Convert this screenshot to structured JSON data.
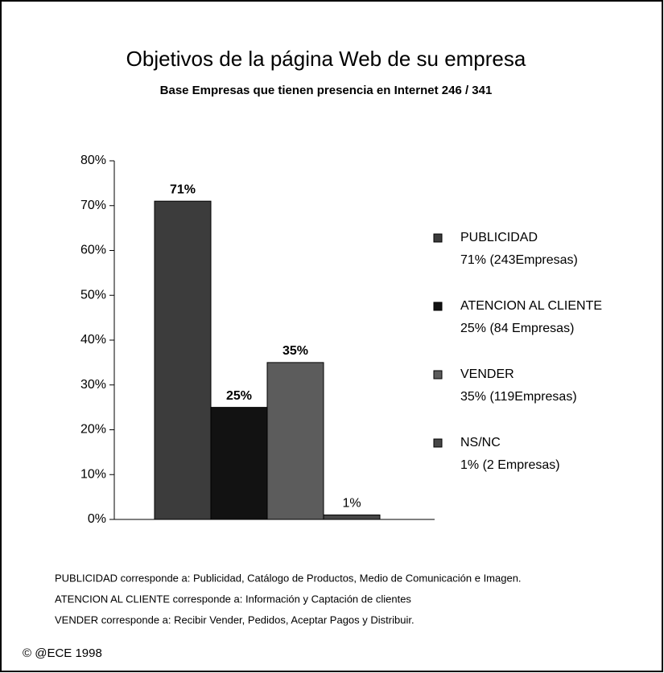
{
  "chart_data": {
    "type": "bar",
    "title": "Objetivos de la página Web de su empresa",
    "subtitle": "Base Empresas que tienen presencia en Internet  246 / 341",
    "series": [
      {
        "name": "PUBLICIDAD",
        "detail": "71% (243Empresas)",
        "color": "#3c3c3c",
        "values": [
          71
        ],
        "value_labels": [
          "71%"
        ]
      },
      {
        "name": "ATENCION AL CLIENTE",
        "detail": "25% (84 Empresas)",
        "color": "#121212",
        "values": [
          25
        ],
        "value_labels": [
          "25%"
        ]
      },
      {
        "name": "VENDER",
        "detail": "35% (119Empresas)",
        "color": "#5c5c5c",
        "values": [
          35
        ],
        "value_labels": [
          "35%"
        ]
      },
      {
        "name": "NS/NC",
        "detail": "1% (2 Empresas)",
        "color": "#464646",
        "values": [
          1
        ],
        "value_labels": [
          "1%"
        ]
      }
    ],
    "ylim": [
      0,
      80
    ],
    "yticks": [
      {
        "value": 0,
        "label": "0%"
      },
      {
        "value": 10,
        "label": "10%"
      },
      {
        "value": 20,
        "label": "20%"
      },
      {
        "value": 30,
        "label": "30%"
      },
      {
        "value": 40,
        "label": "40%"
      },
      {
        "value": 50,
        "label": "50%"
      },
      {
        "value": 60,
        "label": "60%"
      },
      {
        "value": 70,
        "label": "70%"
      },
      {
        "value": 80,
        "label": "80%"
      }
    ],
    "legend": "right",
    "notes": [
      "PUBLICIDAD  corresponde a: Publicidad, Catálogo de Productos, Medio de Comunicación e Imagen.",
      "ATENCION AL CLIENTE corresponde a:  Información y Captación de clientes",
      "VENDER  corresponde a: Recibir Vender, Pedidos, Aceptar Pagos y Distribuir."
    ],
    "copyright": "© @ECE 1998"
  }
}
